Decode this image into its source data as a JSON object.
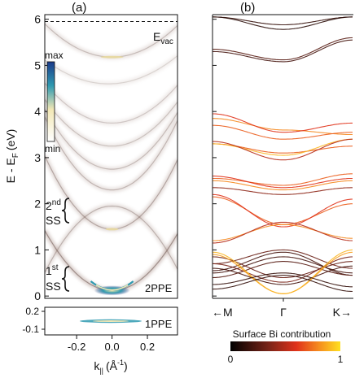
{
  "chart_data": [
    {
      "panel": "(a)",
      "type": "heatmap",
      "xlabel_main": "k",
      "xlabel_sub": "||",
      "xlabel_unit": "(Å",
      "xlabel_unit_sup": "-1",
      "xlabel_unit_end": ")",
      "ylabel_main": "E - E",
      "ylabel_sub": "F",
      "ylabel_unit": "(eV)",
      "xlim": [
        -0.38,
        0.37
      ],
      "ylim": [
        -0.05,
        6.1
      ],
      "xticks": [
        -0.2,
        0.0,
        0.2
      ],
      "xtick_labels": [
        "-0.2",
        "0.0",
        "0.2"
      ],
      "yticks": [
        0,
        1,
        2,
        3,
        4,
        5,
        6
      ],
      "ytick_labels": [
        "0",
        "1",
        "2",
        "3",
        "4",
        "5",
        "6"
      ],
      "vacuum_level": {
        "y": 5.95,
        "label": "E",
        "label_sub": "vac"
      },
      "colorbar": {
        "max_label": "max",
        "min_label": "min",
        "colors": [
          "#1a3a8a",
          "#2f9ab0",
          "#f2e7b5",
          "#ffffff"
        ]
      },
      "annotations": [
        {
          "text": "2",
          "sup": "nd",
          "line2": "SS",
          "y": 1.75
        },
        {
          "text": "1",
          "sup": "st",
          "line2": "SS",
          "y": 0.25
        },
        {
          "text": "2PPE"
        }
      ],
      "bands": [
        {
          "k0": 0.0,
          "e0": 5.18,
          "curv": 10,
          "intensity": 0.55
        },
        {
          "k0": -0.02,
          "e0": 4.6,
          "curv": 8,
          "intensity": 0.35
        },
        {
          "k0": 0.0,
          "e0": 3.75,
          "curv": 12,
          "intensity": 0.45
        },
        {
          "k0": 0.0,
          "e0": 3.25,
          "curv": 14,
          "intensity": 0.5
        },
        {
          "k0": 0.0,
          "e0": 2.75,
          "curv": 18,
          "intensity": 0.55
        },
        {
          "k0": 0.0,
          "e0": 2.3,
          "curv": 22,
          "intensity": 0.6
        },
        {
          "k0": 0.0,
          "e0": 1.95,
          "curv": -20,
          "intensity": 0.65
        },
        {
          "k0": 0.0,
          "e0": 1.45,
          "curv": 22,
          "intensity": 0.75
        },
        {
          "k0": 0.0,
          "e0": 0.12,
          "curv": 18,
          "intensity": 1.0
        }
      ]
    },
    {
      "panel": "(a) inset",
      "type": "heatmap",
      "label": "1PPE",
      "yticks": [
        0.2,
        -0.1
      ],
      "ytick_labels": [
        "0.2",
        "-0.1"
      ],
      "ylim": [
        -0.25,
        0.28
      ]
    },
    {
      "panel": "(b)",
      "type": "line",
      "x_labels": [
        "M",
        "Γ",
        "K"
      ],
      "arrow_left": "←",
      "arrow_right": "→",
      "ylim": [
        -0.05,
        6.1
      ],
      "colorbar": {
        "title": "Surface Bi contribution",
        "min_label": "0",
        "max_label": "1",
        "colors": [
          "#000000",
          "#7a2418",
          "#e0321a",
          "#f58a1f",
          "#ffe020"
        ]
      },
      "bands": [
        {
          "eG": 5.88,
          "eM": 6.05,
          "eK": 6.05,
          "w": 0.15
        },
        {
          "eG": 5.78,
          "eM": 6.05,
          "eK": 6.05,
          "w": 0.12
        },
        {
          "eG": 5.12,
          "eM": 5.35,
          "eK": 5.6,
          "w": 0.25
        },
        {
          "eG": 5.08,
          "eM": 5.3,
          "eK": 5.55,
          "w": 0.2
        },
        {
          "eG": 3.6,
          "eM": 3.85,
          "eK": 3.5,
          "w": 0.8
        },
        {
          "eG": 3.55,
          "eM": 3.95,
          "eK": 3.75,
          "w": 0.6
        },
        {
          "eG": 3.4,
          "eM": 3.7,
          "eK": 3.55,
          "w": 0.7
        },
        {
          "eG": 3.1,
          "eM": 3.3,
          "eK": 3.25,
          "w": 0.7
        },
        {
          "eG": 3.05,
          "eM": 3.3,
          "eK": 3.4,
          "w": 0.9
        },
        {
          "eG": 2.95,
          "eM": 3.35,
          "eK": 3.4,
          "w": 0.5
        },
        {
          "eG": 2.4,
          "eM": 2.55,
          "eK": 2.65,
          "w": 0.7
        },
        {
          "eG": 2.35,
          "eM": 2.6,
          "eK": 2.55,
          "w": 0.6
        },
        {
          "eG": 2.3,
          "eM": 2.5,
          "eK": 2.5,
          "w": 0.8
        },
        {
          "eG": 2.2,
          "eM": 2.35,
          "eK": 2.35,
          "w": 0.4
        },
        {
          "eG": 1.55,
          "eM": 2.15,
          "eK": 2.0,
          "w": 0.7
        },
        {
          "eG": 1.5,
          "eM": 2.2,
          "eK": 2.1,
          "w": 0.6
        },
        {
          "eG": 1.55,
          "eM": 1.2,
          "eK": 1.25,
          "w": 0.8
        },
        {
          "eG": 1.6,
          "eM": 1.15,
          "eK": 1.2,
          "w": 0.5
        },
        {
          "eG": 1.0,
          "eM": 0.7,
          "eK": 0.6,
          "w": 0.3
        },
        {
          "eG": 0.95,
          "eM": 0.55,
          "eK": 0.45,
          "w": 0.2
        },
        {
          "eG": 0.85,
          "eM": 0.5,
          "eK": 0.5,
          "w": 0.2
        },
        {
          "eG": 0.75,
          "eM": 0.4,
          "eK": 0.45,
          "w": 0.25
        },
        {
          "eG": 0.4,
          "eM": 0.85,
          "eK": 0.75,
          "w": 0.3
        },
        {
          "eG": 0.3,
          "eM": 0.7,
          "eK": 0.85,
          "w": 0.35
        },
        {
          "eG": 0.25,
          "eM": 0.6,
          "eK": 0.65,
          "w": 0.2
        },
        {
          "eG": 0.05,
          "eM": 0.9,
          "eK": 0.95,
          "w": 0.85
        },
        {
          "eG": 0.05,
          "eM": 0.95,
          "eK": 1.0,
          "w": 0.9
        },
        {
          "eG": 0.5,
          "eM": 0.25,
          "eK": 0.2,
          "w": 0.15
        },
        {
          "eG": 0.45,
          "eM": 0.15,
          "eK": 0.1,
          "w": 0.15
        }
      ]
    }
  ]
}
